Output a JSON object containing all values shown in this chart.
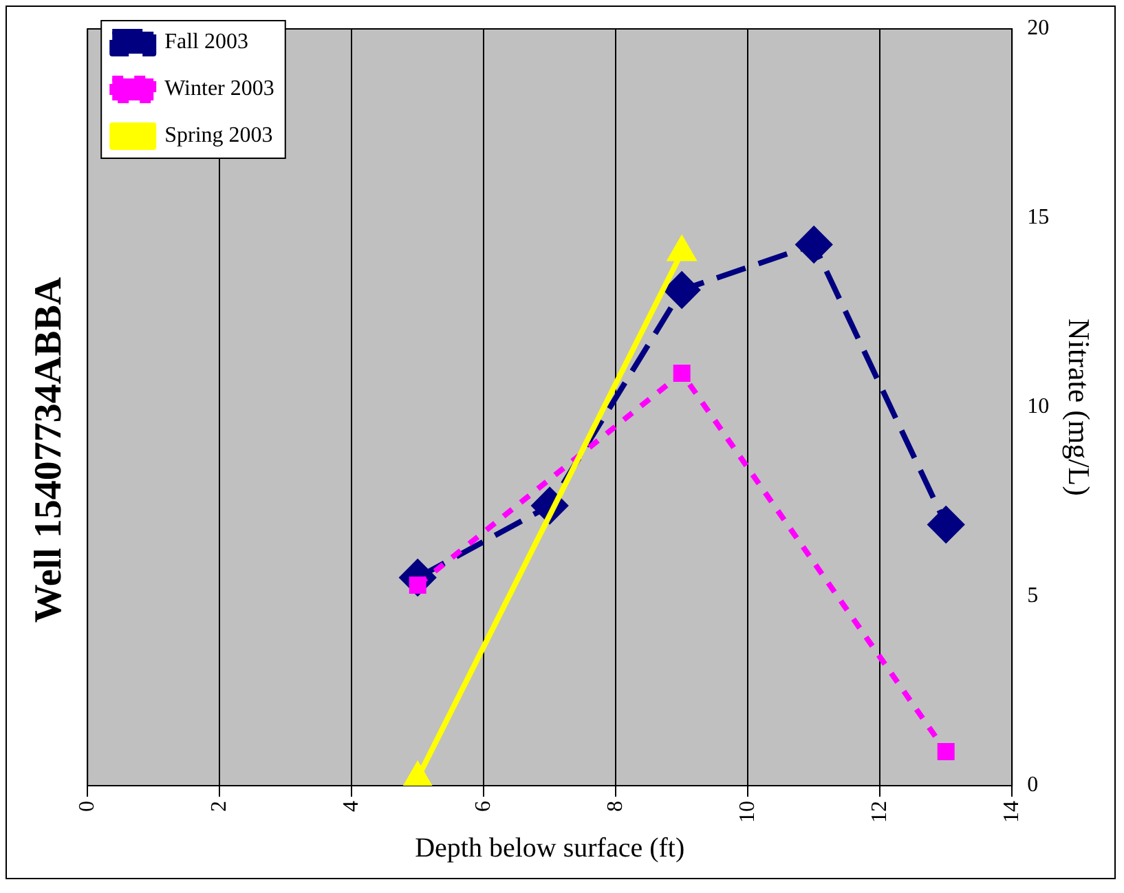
{
  "chart_data": {
    "type": "line",
    "title": "Well 15407734ABBA",
    "xlabel": "Depth below surface (ft)",
    "ylabel": "Nitrate (mg/L)",
    "xlim": [
      0,
      14
    ],
    "xticks": [
      0,
      2,
      4,
      6,
      8,
      10,
      12,
      14
    ],
    "ylim": [
      0,
      20
    ],
    "yticks": [
      0,
      5,
      10,
      15,
      20
    ],
    "grid": "x",
    "legend": "top left",
    "series": [
      {
        "name": "Fall 2003",
        "color": "#000080",
        "marker": "diamond",
        "line_style": "dashed",
        "x": [
          5,
          7,
          9,
          11,
          13
        ],
        "values": [
          5.5,
          7.4,
          13.1,
          14.3,
          6.9
        ]
      },
      {
        "name": "Winter 2003",
        "color": "#ff00ff",
        "marker": "square",
        "line_style": "dotted",
        "x": [
          5,
          9,
          13
        ],
        "values": [
          5.3,
          10.9,
          0.9
        ]
      },
      {
        "name": "Spring 2003",
        "color": "#ffff00",
        "marker": "triangle",
        "line_style": "solid",
        "x": [
          5,
          9
        ],
        "values": [
          0.2,
          14.1
        ]
      }
    ]
  }
}
